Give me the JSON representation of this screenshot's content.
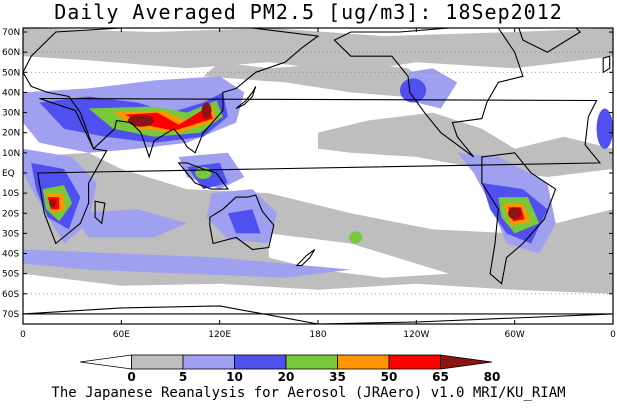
{
  "title": "Daily Averaged PM2.5 [ug/m3]: 18Sep2012",
  "lat_labels": [
    "70N",
    "60N",
    "50N",
    "40N",
    "30N",
    "20N",
    "10N",
    "EQ",
    "10S",
    "20S",
    "30S",
    "40S",
    "50S",
    "60S",
    "70S"
  ],
  "lon_labels": [
    "0",
    "60E",
    "120E",
    "180",
    "120W",
    "60W",
    "0"
  ],
  "colorbar": {
    "ticks": [
      "0",
      "5",
      "10",
      "20",
      "35",
      "50",
      "65",
      "80"
    ],
    "colors": [
      "#ffffff",
      "#bebebe",
      "#a0a0f0",
      "#5050f0",
      "#78c83c",
      "#ff9600",
      "#ff0000",
      "#8c1414"
    ]
  },
  "credit": "The Japanese Reanalysis for Aerosol (JRAero) v1.0 MRI/KU_RIAM"
}
